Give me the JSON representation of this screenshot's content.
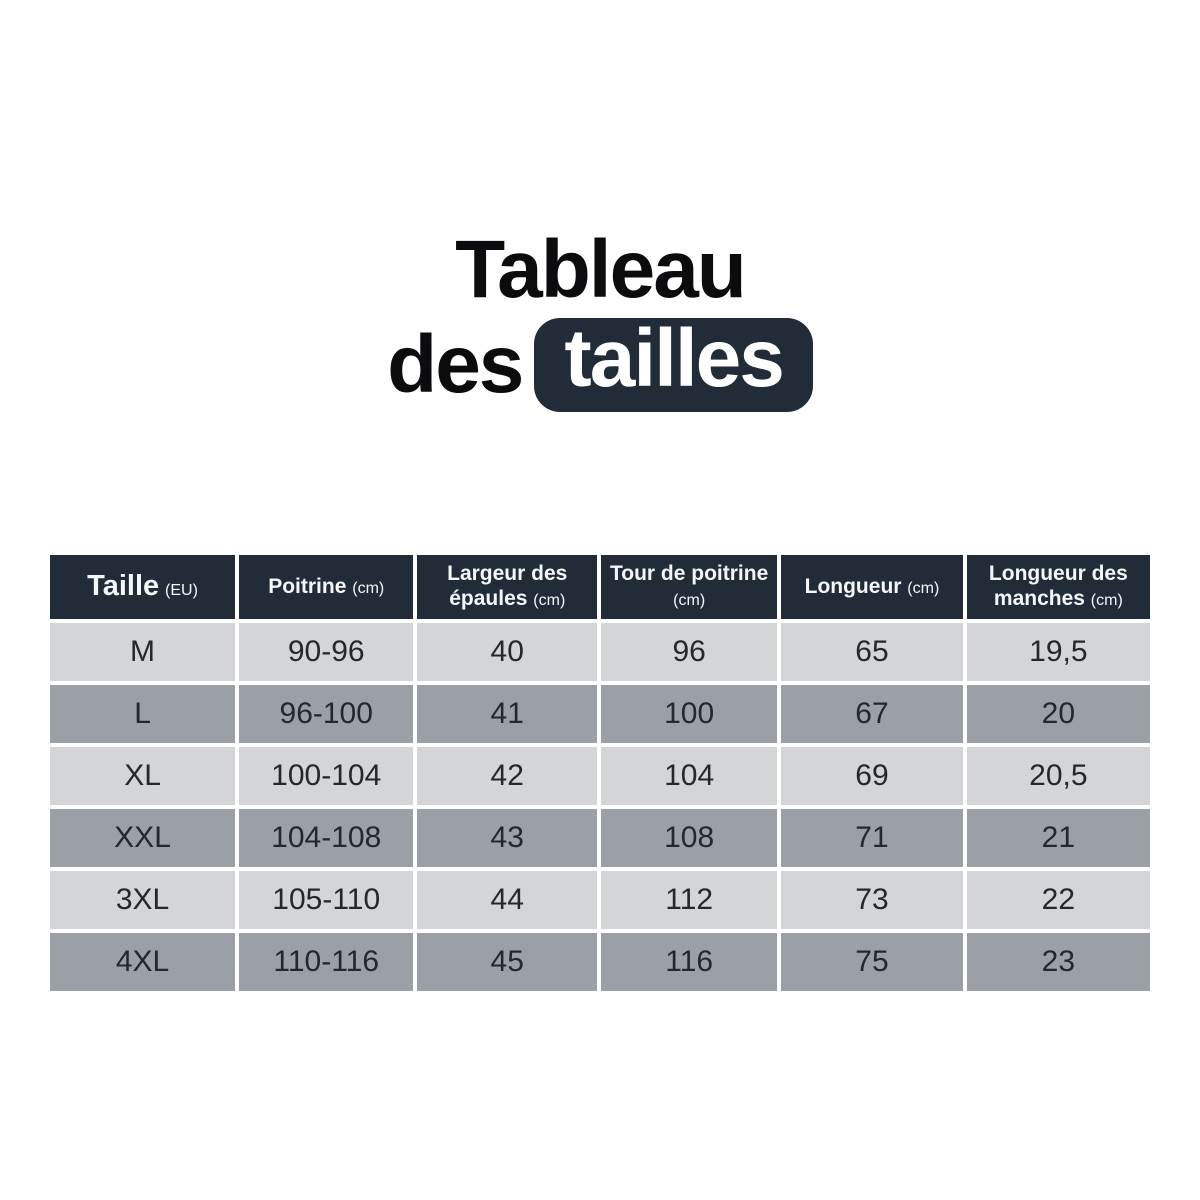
{
  "title": {
    "line1": "Tableau",
    "line2_prefix": "des",
    "line2_badge": "tailles"
  },
  "colors": {
    "header_bg": "#222c38",
    "badge_bg": "#222c38",
    "row_light": "#d3d5d7",
    "row_dark": "#9aa0a6",
    "text_dark": "#24282d"
  },
  "table": {
    "columns": [
      {
        "label": "Taille",
        "unit": "(EU)"
      },
      {
        "label": "Poitrine",
        "unit": "(cm)"
      },
      {
        "label": "Largeur des épaules",
        "unit": "(cm)"
      },
      {
        "label": "Tour de poitrine",
        "unit": "(cm)"
      },
      {
        "label": "Longueur",
        "unit": "(cm)"
      },
      {
        "label": "Longueur des manches",
        "unit": "(cm)"
      }
    ],
    "rows": [
      {
        "cells": [
          "M",
          "90-96",
          "40",
          "96",
          "65",
          "19,5"
        ]
      },
      {
        "cells": [
          "L",
          "96-100",
          "41",
          "100",
          "67",
          "20"
        ]
      },
      {
        "cells": [
          "XL",
          "100-104",
          "42",
          "104",
          "69",
          "20,5"
        ]
      },
      {
        "cells": [
          "XXL",
          "104-108",
          "43",
          "108",
          "71",
          "21"
        ]
      },
      {
        "cells": [
          "3XL",
          "105-110",
          "44",
          "112",
          "73",
          "22"
        ]
      },
      {
        "cells": [
          "4XL",
          "110-116",
          "45",
          "116",
          "75",
          "23"
        ]
      }
    ]
  },
  "chart_data": {
    "type": "table",
    "title": "Tableau des tailles",
    "columns": [
      "Taille (EU)",
      "Poitrine (cm)",
      "Largeur des épaules (cm)",
      "Tour de poitrine (cm)",
      "Longueur (cm)",
      "Longueur des manches (cm)"
    ],
    "rows": [
      [
        "M",
        "90-96",
        40,
        96,
        65,
        19.5
      ],
      [
        "L",
        "96-100",
        41,
        100,
        67,
        20
      ],
      [
        "XL",
        "100-104",
        42,
        104,
        69,
        20.5
      ],
      [
        "XXL",
        "104-108",
        43,
        108,
        71,
        21
      ],
      [
        "3XL",
        "105-110",
        44,
        112,
        73,
        22
      ],
      [
        "4XL",
        "110-116",
        45,
        116,
        75,
        23
      ]
    ]
  }
}
